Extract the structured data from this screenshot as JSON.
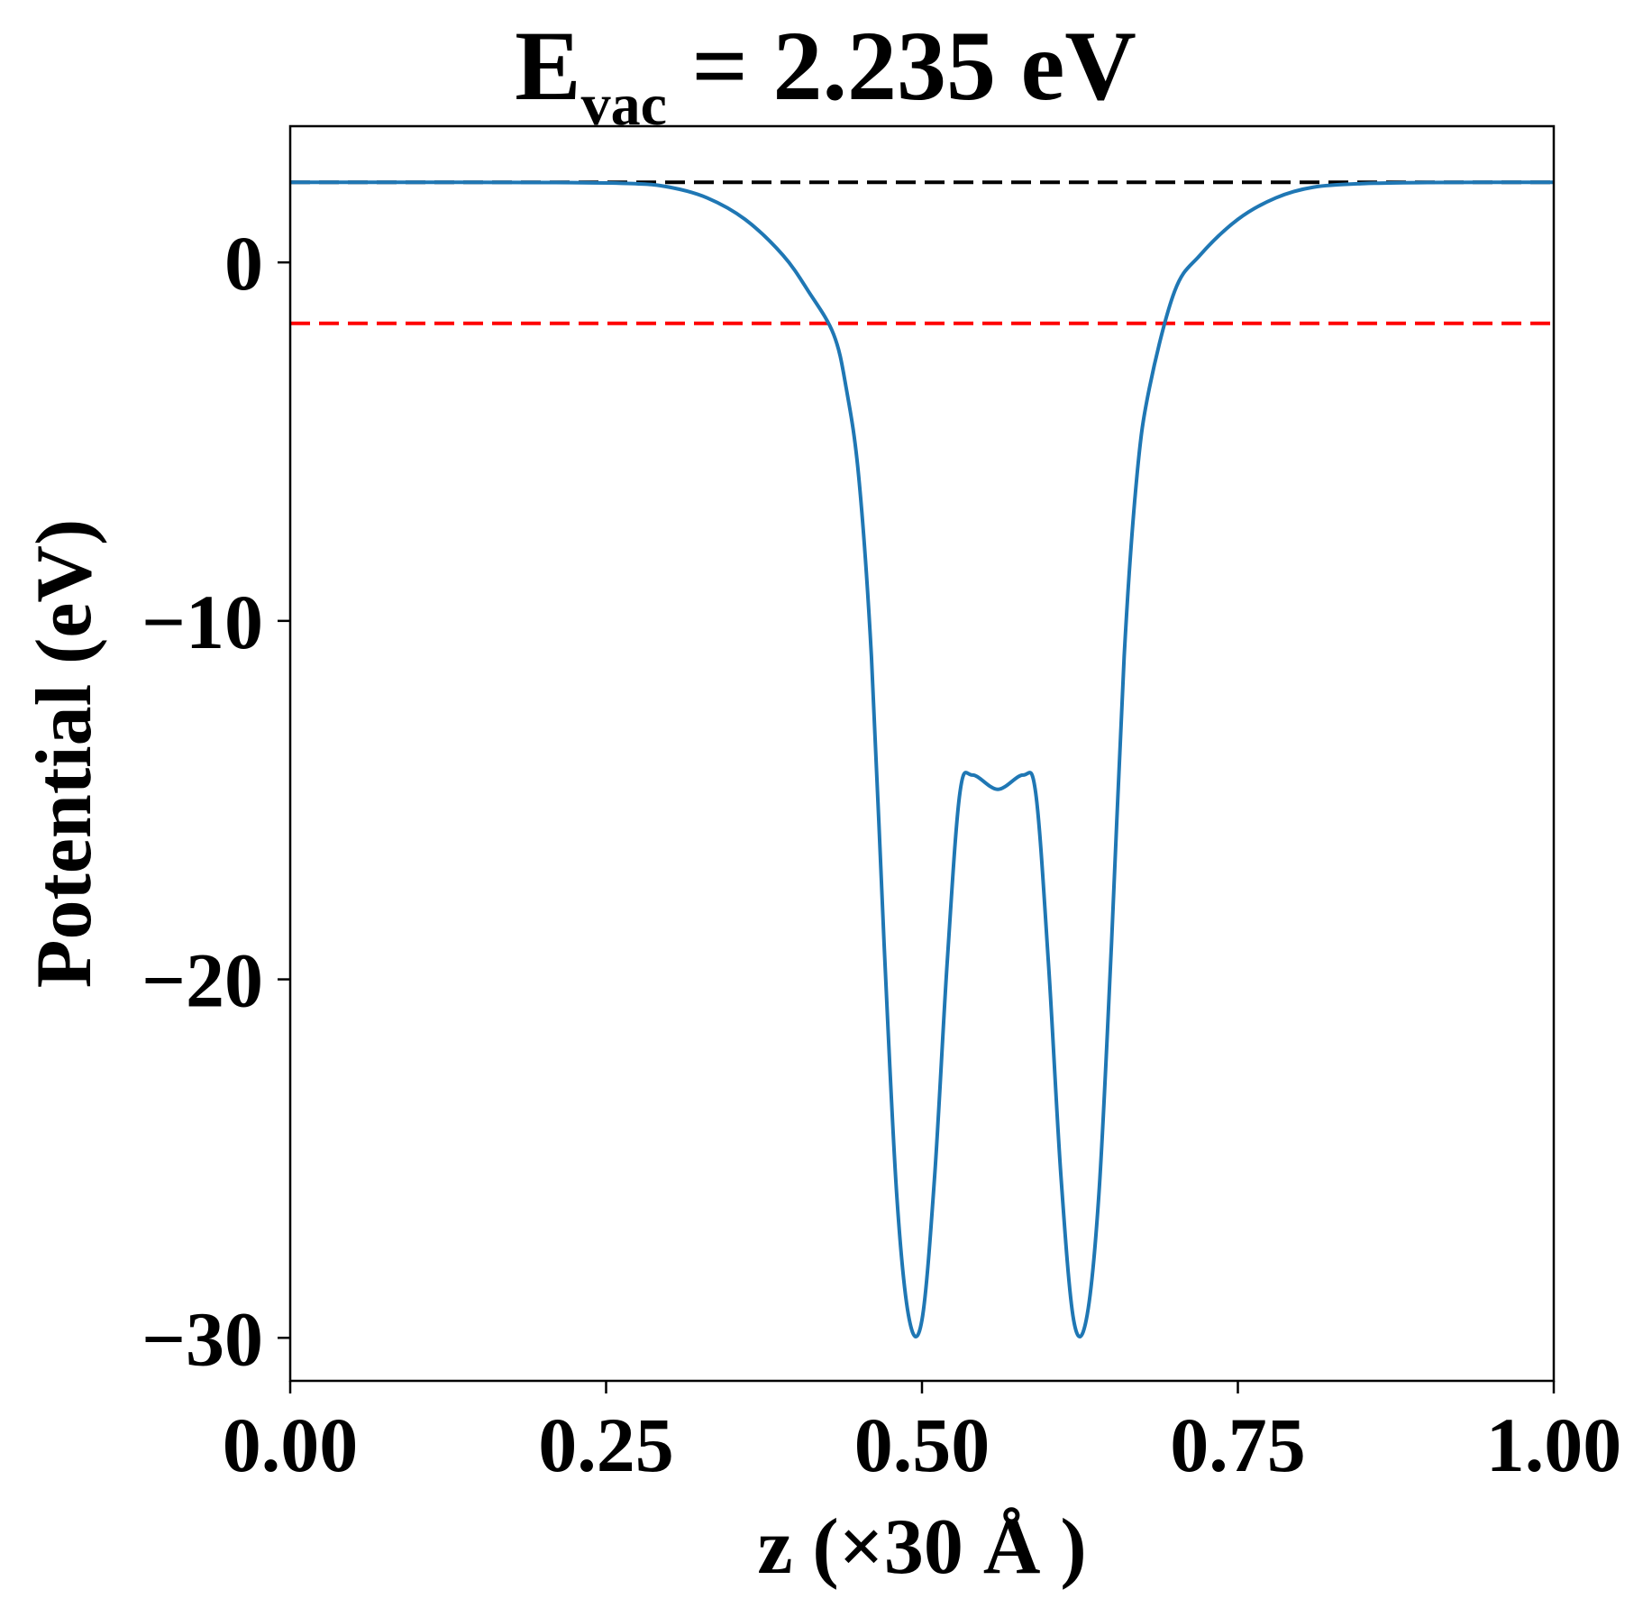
{
  "chart_data": {
    "type": "line",
    "title": "E",
    "title_subscript": "vac",
    "title_suffix": " = 2.235 eV",
    "xlabel": "z (×30 Å )",
    "ylabel": "Potential (eV)",
    "xlim": [
      0.0,
      1.0
    ],
    "ylim": [
      -31.2,
      3.8
    ],
    "xticks": [
      0.0,
      0.25,
      0.5,
      0.75,
      1.0
    ],
    "xtick_labels": [
      "0.00",
      "0.25",
      "0.50",
      "0.75",
      "1.00"
    ],
    "yticks": [
      0,
      -10,
      -20,
      -30
    ],
    "ytick_labels": [
      "0",
      "−10",
      "−20",
      "−30"
    ],
    "grid": false,
    "reference_lines": [
      {
        "y": 2.235,
        "color": "#000000",
        "style": "dashed"
      },
      {
        "y": -1.7,
        "color": "#ff0000",
        "style": "dashed"
      }
    ],
    "series": [
      {
        "color": "#1f77b4",
        "x": [
          0.0,
          0.1,
          0.2,
          0.27,
          0.3,
          0.33,
          0.36,
          0.39,
          0.41,
          0.43,
          0.44,
          0.45,
          0.46,
          0.47,
          0.48,
          0.49,
          0.5,
          0.51,
          0.52,
          0.53,
          0.54,
          0.56,
          0.58,
          0.59,
          0.6,
          0.61,
          0.62,
          0.63,
          0.64,
          0.65,
          0.66,
          0.67,
          0.68,
          0.7,
          0.72,
          0.75,
          0.78,
          0.81,
          0.85,
          0.9,
          1.0
        ],
        "y": [
          2.235,
          2.235,
          2.23,
          2.2,
          2.1,
          1.8,
          1.2,
          0.2,
          -0.8,
          -2.0,
          -3.5,
          -6.0,
          -11.0,
          -19.0,
          -26.0,
          -29.5,
          -29.5,
          -25.5,
          -19.5,
          -14.8,
          -14.3,
          -14.7,
          -14.3,
          -14.8,
          -19.5,
          -25.5,
          -29.5,
          -29.5,
          -26.0,
          -19.0,
          -11.0,
          -6.0,
          -3.5,
          -0.8,
          0.2,
          1.2,
          1.8,
          2.1,
          2.2,
          2.23,
          2.235
        ]
      }
    ]
  }
}
